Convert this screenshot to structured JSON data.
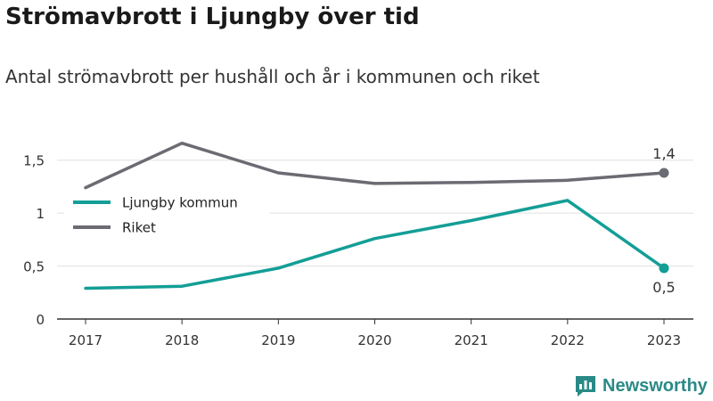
{
  "title": "Strömavbrott i Ljungby över tid",
  "subtitle": "Antal strömavbrott per hushåll och år i kommunen och riket",
  "brand": "Newsworthy",
  "chart_data": {
    "type": "line",
    "x": [
      "2017",
      "2018",
      "2019",
      "2020",
      "2021",
      "2022",
      "2023"
    ],
    "ylim": [
      0,
      1.75
    ],
    "yticks": [
      0,
      0.5,
      1,
      1.5
    ],
    "ytick_labels": [
      "0",
      "0,5",
      "1",
      "1,5"
    ],
    "grid": true,
    "legend_position": "left",
    "series": [
      {
        "name": "Ljungby kommun",
        "color": "#139e96",
        "values": [
          0.29,
          0.31,
          0.48,
          0.76,
          0.93,
          1.12,
          0.48
        ],
        "end_label": "0,5"
      },
      {
        "name": "Riket",
        "color": "#6b6b73",
        "values": [
          1.24,
          1.66,
          1.38,
          1.28,
          1.29,
          1.31,
          1.38
        ],
        "end_label": "1,4"
      }
    ]
  }
}
